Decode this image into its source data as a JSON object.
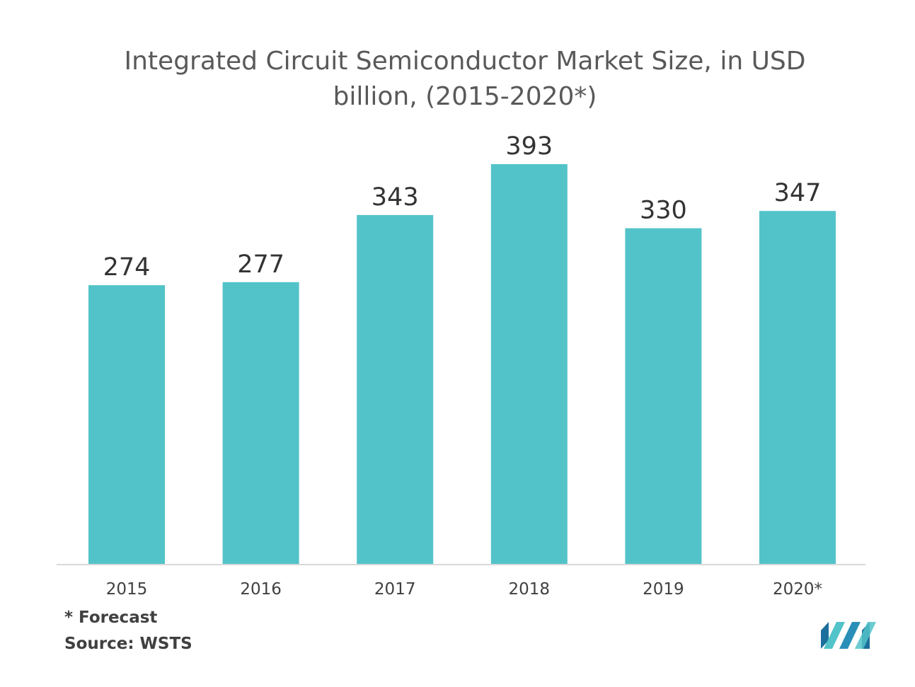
{
  "chart_data": {
    "type": "bar",
    "title_line1": "Integrated Circuit Semiconductor Market Size, in USD",
    "title_line2": "billion, (2015-2020*)",
    "categories": [
      "2015",
      "2016",
      "2017",
      "2018",
      "2019",
      "2020*"
    ],
    "values": [
      274,
      277,
      343,
      393,
      330,
      347
    ],
    "bar_color": "#52c3c9",
    "axis_color": "#d9d9d9",
    "grid": false,
    "legend": "none"
  },
  "footnotes": {
    "forecast": "* Forecast",
    "source": "Source: WSTS"
  },
  "logo": {
    "icon": "mordor-intelligence-logo",
    "colors": [
      "#1c6e9c",
      "#52c3c9"
    ]
  }
}
